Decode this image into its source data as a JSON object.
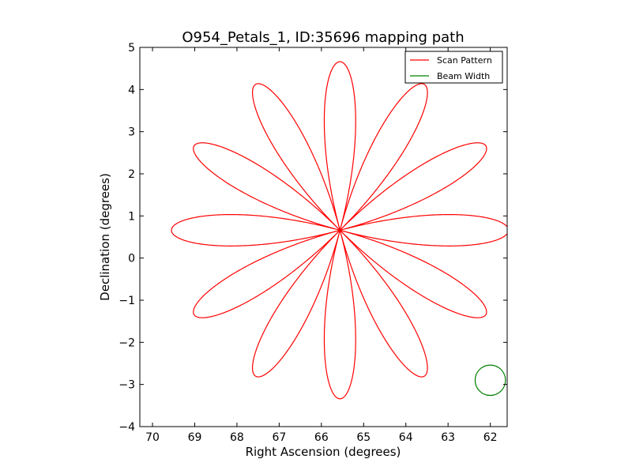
{
  "chart_data": {
    "type": "line",
    "title": "O954_Petals_1, ID:35696 mapping path",
    "xlabel": "Right Ascension (degrees)",
    "ylabel": "Declination (degrees)",
    "xlim": [
      70.3,
      61.6
    ],
    "ylim": [
      -4,
      5
    ],
    "x_inverted": true,
    "xticks": [
      70,
      69,
      68,
      67,
      66,
      65,
      64,
      63,
      62
    ],
    "yticks": [
      -4,
      -3,
      -2,
      -1,
      0,
      1,
      2,
      3,
      4,
      5
    ],
    "xtick_labels": [
      "70",
      "69",
      "68",
      "67",
      "66",
      "65",
      "64",
      "63",
      "62"
    ],
    "ytick_labels": [
      "−4",
      "−3",
      "−2",
      "−1",
      "0",
      "1",
      "2",
      "3",
      "4",
      "5"
    ],
    "grid": false,
    "legend_position": "top-right",
    "series": [
      {
        "name": "Scan Pattern",
        "color": "#ff0000",
        "kind": "rose",
        "center": [
          65.56,
          0.66
        ],
        "petals": 12,
        "petal_length": 4.0,
        "first_petal_angle_deg": 90
      },
      {
        "name": "Beam Width",
        "color": "#008000",
        "kind": "circle",
        "center": [
          62.0,
          -2.9
        ],
        "radius": 0.36
      }
    ]
  }
}
